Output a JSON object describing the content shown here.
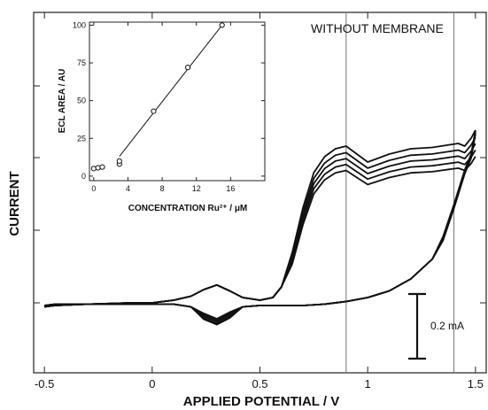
{
  "chart_data": [
    {
      "type": "line",
      "title": "",
      "xlabel": "APPLIED POTENTIAL / V",
      "ylabel": "CURRENT",
      "xlim": [
        -0.55,
        1.55
      ],
      "x_ticks": [
        -0.5,
        0,
        0.5,
        1,
        1.5
      ],
      "x_tick_labels": [
        "-0.5",
        "0",
        "0.5",
        "1",
        "1.5"
      ],
      "annotation": "WITHOUT MEMBRANE",
      "vertical_reference_lines_x": [
        0.9,
        1.4
      ],
      "scale_bar_label": "0.2 mA",
      "scale_bar_value_mA": 0.2,
      "y_units": "relative current (scale bar = 0.2 mA)",
      "grid": false,
      "series": [
        {
          "x": [
            -0.5,
            -0.45,
            -0.3,
            -0.1,
            0.0,
            0.1,
            0.18,
            0.24,
            0.3,
            0.36,
            0.42,
            0.5,
            0.56,
            0.6,
            0.65,
            0.7,
            0.75,
            0.8,
            0.85,
            0.9,
            0.95,
            1.0,
            1.1,
            1.2,
            1.3,
            1.38,
            1.42,
            1.45,
            1.48,
            1.5
          ],
          "y": [
            -0.02,
            -0.01,
            -0.01,
            0.0,
            0.0,
            0.02,
            0.05,
            0.1,
            0.135,
            0.09,
            0.04,
            0.02,
            0.04,
            0.12,
            0.38,
            0.72,
            0.98,
            1.1,
            1.16,
            1.18,
            1.12,
            1.06,
            1.12,
            1.16,
            1.17,
            1.19,
            1.2,
            1.18,
            1.24,
            1.3
          ]
        },
        {
          "x": [
            1.5,
            1.48,
            1.45,
            1.4,
            1.35,
            1.3,
            1.2,
            1.1,
            1.0,
            0.9,
            0.8,
            0.7,
            0.6,
            0.5,
            0.42,
            0.36,
            0.3,
            0.24,
            0.18,
            0.1,
            0.0,
            -0.1,
            -0.3,
            -0.45,
            -0.5
          ],
          "y": [
            1.3,
            1.12,
            1.0,
            0.74,
            0.5,
            0.33,
            0.18,
            0.09,
            0.04,
            0.01,
            -0.01,
            -0.02,
            -0.02,
            -0.02,
            -0.03,
            -0.07,
            -0.12,
            -0.08,
            -0.03,
            -0.01,
            -0.01,
            -0.01,
            -0.01,
            -0.02,
            -0.03
          ]
        }
      ]
    },
    {
      "type": "scatter",
      "title": "",
      "xlabel": "CONCENTRATION Ru²⁺ / μM",
      "ylabel": "ECL AREA / AU",
      "xlim": [
        -0.5,
        20
      ],
      "ylim": [
        -3,
        102
      ],
      "x_ticks": [
        0,
        4,
        8,
        12,
        16
      ],
      "y_ticks": [
        0,
        25,
        50,
        75,
        100
      ],
      "x_tick_labels": [
        "0",
        "4",
        "8",
        "12",
        "16"
      ],
      "y_tick_labels": [
        "0",
        "25",
        "50",
        "75",
        "100"
      ],
      "grid": false,
      "points": [
        {
          "x": 0.0,
          "y": 5
        },
        {
          "x": 0.5,
          "y": 5.5
        },
        {
          "x": 1.0,
          "y": 6
        },
        {
          "x": 3.0,
          "y": 8
        },
        {
          "x": 3.0,
          "y": 10
        },
        {
          "x": 7.0,
          "y": 43
        },
        {
          "x": 11.0,
          "y": 72
        },
        {
          "x": 15.0,
          "y": 100
        }
      ],
      "fit_line": {
        "x": [
          3.0,
          15.0
        ],
        "y": [
          13,
          100
        ]
      }
    }
  ]
}
